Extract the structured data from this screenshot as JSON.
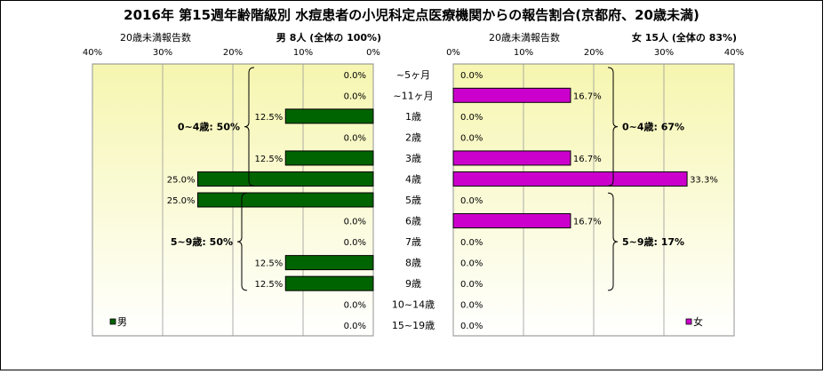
{
  "chart_data": {
    "type": "bar",
    "title": "2016年 第15週年齢階級別 水痘患者の小児科定点医療機関からの報告割合(京都府、20歳未満)",
    "categories": [
      "~5ヶ月",
      "~11ヶ月",
      "1歳",
      "2歳",
      "3歳",
      "4歳",
      "5歳",
      "6歳",
      "7歳",
      "8歳",
      "9歳",
      "10~14歳",
      "15~19歳"
    ],
    "series": [
      {
        "name": "男",
        "color": "#006400",
        "values": [
          0.0,
          0.0,
          12.5,
          0.0,
          12.5,
          25.0,
          25.0,
          0.0,
          0.0,
          12.5,
          12.5,
          0.0,
          0.0
        ],
        "value_labels": [
          "0.0%",
          "0.0%",
          "12.5%",
          "0.0%",
          "12.5%",
          "25.0%",
          "25.0%",
          "0.0%",
          "0.0%",
          "12.5%",
          "12.5%",
          "0.0%",
          "0.0%"
        ],
        "header_left": "20歳未満報告数",
        "header_right": "男 8人 (全体の 100%)",
        "group_labels": [
          "0~4歳: 50%",
          "5~9歳: 50%"
        ],
        "legend": "男"
      },
      {
        "name": "女",
        "color": "#cc00cc",
        "values": [
          0.0,
          16.7,
          0.0,
          0.0,
          16.7,
          33.3,
          0.0,
          16.7,
          0.0,
          0.0,
          0.0,
          0.0,
          0.0
        ],
        "value_labels": [
          "0.0%",
          "16.7%",
          "0.0%",
          "0.0%",
          "16.7%",
          "33.3%",
          "0.0%",
          "16.7%",
          "0.0%",
          "0.0%",
          "0.0%",
          "0.0%",
          "0.0%"
        ],
        "header_left": "20歳未満報告数",
        "header_right": "女 15人 (全体の 83%)",
        "group_labels": [
          "0~4歳: 67%",
          "5~9歳: 17%"
        ],
        "legend": "女"
      }
    ],
    "xlim": [
      0,
      40
    ],
    "x_ticks": [
      "0%",
      "10%",
      "20%",
      "30%",
      "40%"
    ],
    "grid": true,
    "background_gradient": [
      "#f6f6b0",
      "#ffffff"
    ]
  }
}
